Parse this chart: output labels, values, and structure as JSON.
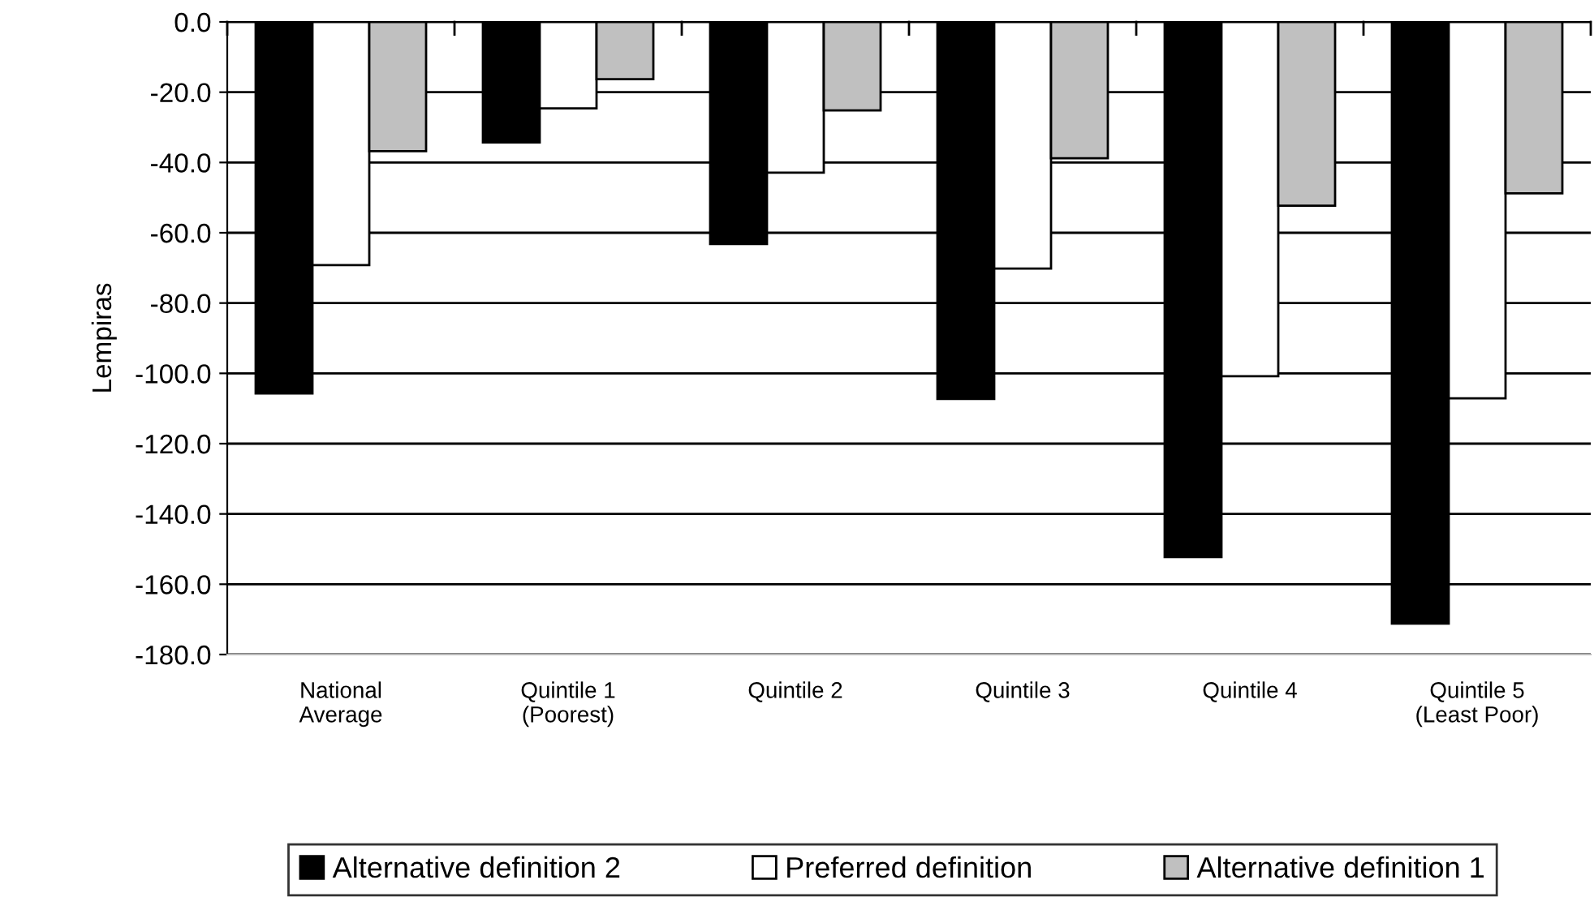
{
  "chart_data": {
    "type": "bar",
    "ylabel": "Lempiras",
    "categories": [
      "National\nAverage",
      "Quintile 1\n(Poorest)",
      "Quintile 2",
      "Quintile 3",
      "Quintile 4",
      "Quintile 5\n(Least Poor)"
    ],
    "series": [
      {
        "name": "Alternative definition 2",
        "color": "#000000",
        "values": [
          -105.7,
          -34.3,
          -63.2,
          -107.3,
          -152.3,
          -171.2
        ]
      },
      {
        "name": "Preferred definition",
        "color": "#ffffff",
        "values": [
          -69.2,
          -24.6,
          -42.9,
          -70.2,
          -100.8,
          -107.1
        ]
      },
      {
        "name": "Alternative definition 1",
        "color": "#c0c0c0",
        "values": [
          -36.8,
          -16.3,
          -25.2,
          -38.8,
          -52.3,
          -48.8
        ]
      }
    ],
    "ylim": [
      -180,
      0
    ],
    "yticks": [
      {
        "value": 0,
        "label": "0.0"
      },
      {
        "value": -20,
        "label": "-20.0"
      },
      {
        "value": -40,
        "label": "-40.0"
      },
      {
        "value": -60,
        "label": "-60.0"
      },
      {
        "value": -80,
        "label": "-80.0"
      },
      {
        "value": -100,
        "label": "-100.0"
      },
      {
        "value": -120,
        "label": "-120.0"
      },
      {
        "value": -140,
        "label": "-140.0"
      },
      {
        "value": -160,
        "label": "-160.0"
      },
      {
        "value": -180,
        "label": "-180.0"
      }
    ],
    "grid": "y",
    "legend": "bottom"
  }
}
